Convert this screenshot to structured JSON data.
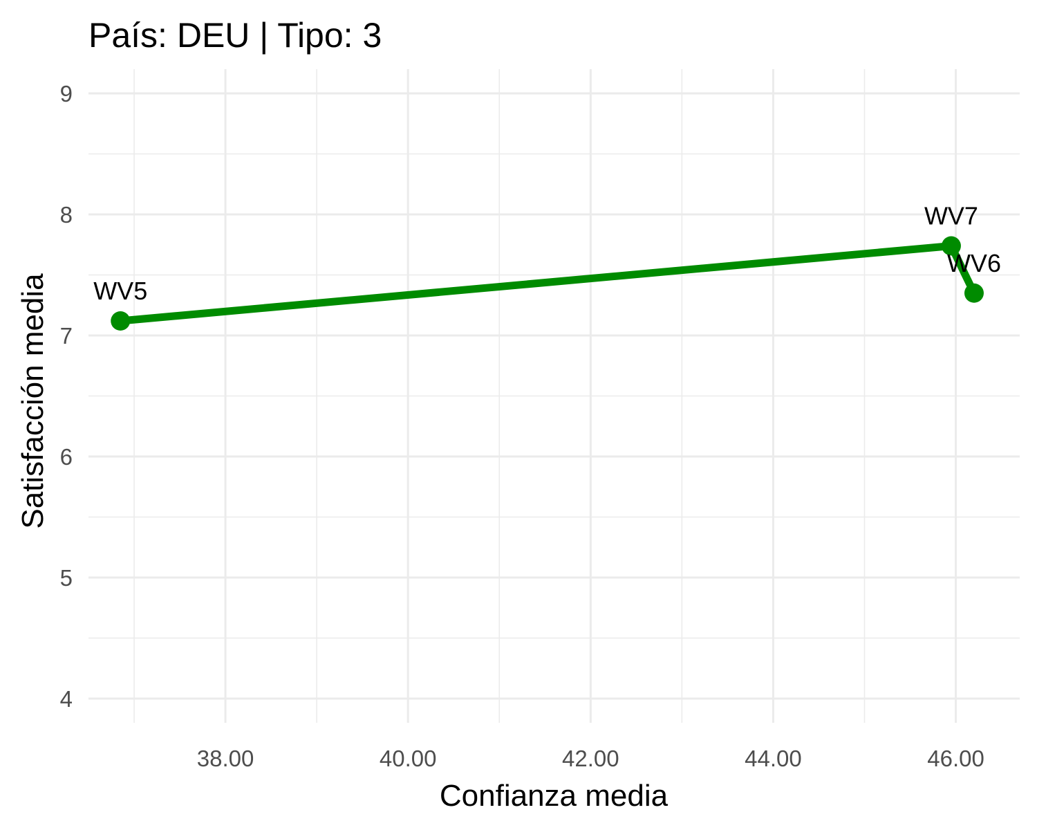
{
  "chart_data": {
    "type": "line",
    "title": "País: DEU | Tipo: 3",
    "xlabel": "Confianza media",
    "ylabel": "Satisfacción media",
    "xlim": [
      36.5,
      46.7
    ],
    "ylim": [
      3.8,
      9.2
    ],
    "x_ticks": [
      38,
      40,
      42,
      44,
      46
    ],
    "x_tick_labels": [
      "38.00",
      "40.00",
      "42.00",
      "44.00",
      "46.00"
    ],
    "y_ticks": [
      4,
      5,
      6,
      7,
      8,
      9
    ],
    "y_tick_labels": [
      "4",
      "5",
      "6",
      "7",
      "8",
      "9"
    ],
    "grid": true,
    "legend": false,
    "series": [
      {
        "color": "#008B00",
        "points": [
          {
            "label": "WV5",
            "x": 36.85,
            "y": 7.12
          },
          {
            "label": "WV7",
            "x": 45.95,
            "y": 7.74
          },
          {
            "label": "WV6",
            "x": 46.2,
            "y": 7.35
          }
        ]
      }
    ]
  }
}
